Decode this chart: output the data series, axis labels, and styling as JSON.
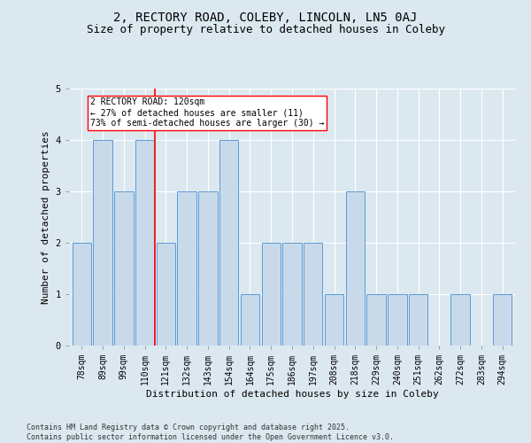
{
  "title": "2, RECTORY ROAD, COLEBY, LINCOLN, LN5 0AJ",
  "subtitle": "Size of property relative to detached houses in Coleby",
  "xlabel": "Distribution of detached houses by size in Coleby",
  "ylabel": "Number of detached properties",
  "categories": [
    "78sqm",
    "89sqm",
    "99sqm",
    "110sqm",
    "121sqm",
    "132sqm",
    "143sqm",
    "154sqm",
    "164sqm",
    "175sqm",
    "186sqm",
    "197sqm",
    "208sqm",
    "218sqm",
    "229sqm",
    "240sqm",
    "251sqm",
    "262sqm",
    "272sqm",
    "283sqm",
    "294sqm"
  ],
  "values": [
    2,
    4,
    3,
    4,
    2,
    3,
    3,
    4,
    1,
    2,
    2,
    2,
    1,
    3,
    1,
    1,
    1,
    0,
    1,
    0,
    1
  ],
  "bar_color": "#c8daea",
  "bar_edge_color": "#5b9bd5",
  "background_color": "#dce8f0",
  "red_line_x": 4,
  "annotation_text": "2 RECTORY ROAD: 120sqm\n← 27% of detached houses are smaller (11)\n73% of semi-detached houses are larger (30) →",
  "annotation_box_color": "white",
  "annotation_box_edge": "red",
  "ylim": [
    0,
    5
  ],
  "yticks": [
    0,
    1,
    2,
    3,
    4,
    5
  ],
  "footer": "Contains HM Land Registry data © Crown copyright and database right 2025.\nContains public sector information licensed under the Open Government Licence v3.0.",
  "title_fontsize": 10,
  "subtitle_fontsize": 9,
  "xlabel_fontsize": 8,
  "ylabel_fontsize": 8,
  "tick_fontsize": 7,
  "footer_fontsize": 6,
  "annot_fontsize": 7
}
